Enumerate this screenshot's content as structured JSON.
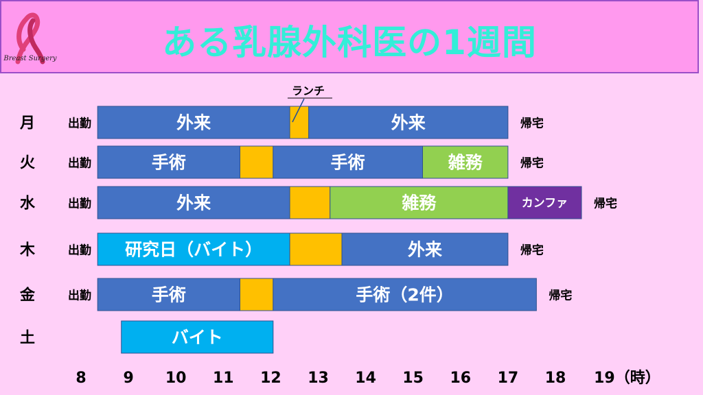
{
  "header": {
    "title": "ある乳腺外科医の1週間",
    "logo_text": "Breast Surgery"
  },
  "colors": {
    "outpatient": "#4472c4",
    "surgery": "#4472c4",
    "lunch": "#ffc000",
    "misc": "#92d050",
    "research": "#00b0f0",
    "conference": "#7030a0",
    "background": "#ffd0f8",
    "header_bg": "#ff99ee",
    "title": "#33eed8"
  },
  "chart_data": {
    "type": "gantt",
    "x_ticks": [
      "8",
      "9",
      "10",
      "11",
      "12",
      "13",
      "14",
      "15",
      "16",
      "17",
      "18",
      "19（時）"
    ],
    "x_range": [
      8,
      19
    ],
    "annotation": {
      "text": "ランチ",
      "hour": 12.5,
      "day": "月"
    },
    "days": [
      {
        "day": "月",
        "start_label": "出勤",
        "end_label": "帰宅",
        "segments": [
          {
            "label": "外来",
            "start": 8.35,
            "end": 12.4,
            "kind": "outpatient"
          },
          {
            "label": "",
            "start": 12.4,
            "end": 12.8,
            "kind": "lunch"
          },
          {
            "label": "外来",
            "start": 12.8,
            "end": 17.0,
            "kind": "outpatient"
          }
        ]
      },
      {
        "day": "火",
        "start_label": "出勤",
        "end_label": "帰宅",
        "segments": [
          {
            "label": "手術",
            "start": 8.35,
            "end": 11.35,
            "kind": "surgery"
          },
          {
            "label": "",
            "start": 11.35,
            "end": 12.05,
            "kind": "lunch"
          },
          {
            "label": "手術",
            "start": 12.05,
            "end": 15.2,
            "kind": "surgery"
          },
          {
            "label": "雑務",
            "start": 15.2,
            "end": 17.0,
            "kind": "misc"
          }
        ]
      },
      {
        "day": "水",
        "start_label": "出勤",
        "end_label": "帰宅",
        "segments": [
          {
            "label": "外来",
            "start": 8.35,
            "end": 12.4,
            "kind": "outpatient"
          },
          {
            "label": "",
            "start": 12.4,
            "end": 13.25,
            "kind": "lunch"
          },
          {
            "label": "雑務",
            "start": 13.25,
            "end": 17.0,
            "kind": "misc"
          },
          {
            "label": "カンファ",
            "start": 17.0,
            "end": 18.55,
            "kind": "conference"
          }
        ]
      },
      {
        "day": "木",
        "start_label": "出勤",
        "end_label": "帰宅",
        "segments": [
          {
            "label": "研究日（バイト）",
            "start": 8.35,
            "end": 12.4,
            "kind": "research"
          },
          {
            "label": "",
            "start": 12.4,
            "end": 13.5,
            "kind": "lunch"
          },
          {
            "label": "外来",
            "start": 13.5,
            "end": 17.0,
            "kind": "outpatient"
          }
        ]
      },
      {
        "day": "金",
        "start_label": "出勤",
        "end_label": "帰宅",
        "segments": [
          {
            "label": "手術",
            "start": 8.35,
            "end": 11.35,
            "kind": "surgery"
          },
          {
            "label": "",
            "start": 11.35,
            "end": 12.05,
            "kind": "lunch"
          },
          {
            "label": "手術（2件）",
            "start": 12.05,
            "end": 17.6,
            "kind": "surgery"
          }
        ]
      },
      {
        "day": "土",
        "start_label": "",
        "end_label": "",
        "segments": [
          {
            "label": "バイト",
            "start": 8.85,
            "end": 12.05,
            "kind": "research"
          }
        ]
      }
    ]
  }
}
